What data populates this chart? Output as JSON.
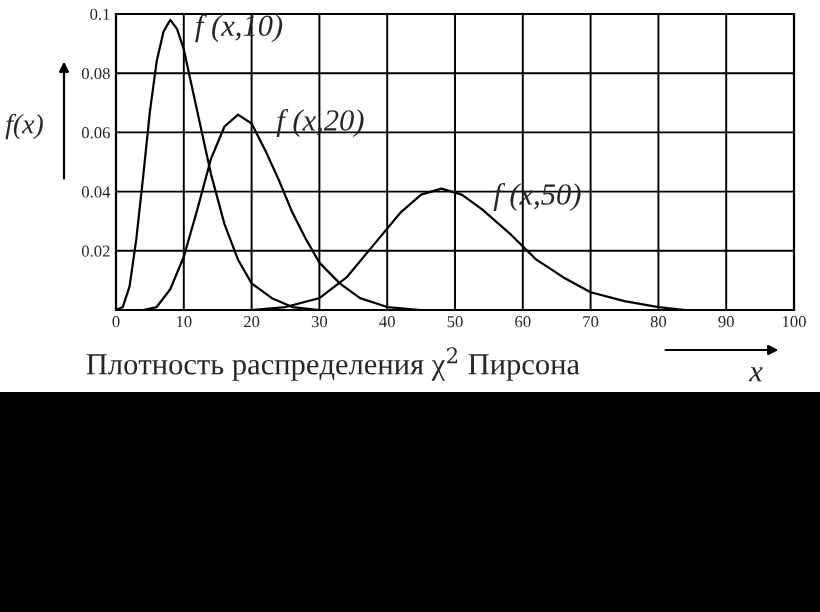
{
  "chart_data": {
    "type": "line",
    "xlabel": "Плотность распределения χ$^{2}$ Пирсона",
    "ylabel": "f(x)",
    "annotations": [
      "x"
    ],
    "xlim": [
      0,
      100
    ],
    "xticks": [
      0,
      10,
      20,
      30,
      40,
      50,
      60,
      70,
      80,
      90,
      100
    ],
    "ylim": [
      0,
      0.1
    ],
    "yticks": [
      {
        "value": 0,
        "label": null
      },
      0.02,
      0.04,
      0.06,
      0.08,
      0.1
    ],
    "grid": true,
    "legend": false,
    "marker": "none",
    "line_style": "solid",
    "series": [
      {
        "name": "f (x,10)",
        "color": "#000000",
        "x": [
          0,
          1,
          2,
          3,
          4,
          5,
          6,
          7,
          8,
          9,
          10,
          12,
          14,
          16,
          18,
          20,
          23,
          26,
          30,
          35,
          43
        ],
        "values": [
          0,
          0.001,
          0.008,
          0.024,
          0.045,
          0.067,
          0.084,
          0.094,
          0.098,
          0.095,
          0.088,
          0.067,
          0.046,
          0.029,
          0.017,
          0.009,
          0.004,
          0.001,
          0,
          0,
          0
        ]
      },
      {
        "name": "f (x,20)",
        "color": "#000000",
        "x": [
          4,
          6,
          8,
          10,
          12,
          14,
          16,
          18,
          20,
          22,
          24,
          26,
          28,
          30,
          33,
          36,
          40,
          45
        ],
        "values": [
          0,
          0.001,
          0.007,
          0.018,
          0.034,
          0.051,
          0.062,
          0.066,
          0.063,
          0.054,
          0.044,
          0.033,
          0.024,
          0.016,
          0.009,
          0.004,
          0.001,
          0
        ]
      },
      {
        "name": "f (x,50)",
        "color": "#000000",
        "x": [
          20,
          25,
          30,
          34,
          38,
          42,
          45,
          48,
          51,
          54,
          58,
          62,
          66,
          70,
          75,
          80,
          84
        ],
        "values": [
          0,
          0.001,
          0.004,
          0.011,
          0.022,
          0.033,
          0.039,
          0.041,
          0.039,
          0.034,
          0.026,
          0.017,
          0.011,
          0.006,
          0.003,
          0.001,
          0
        ]
      }
    ]
  }
}
